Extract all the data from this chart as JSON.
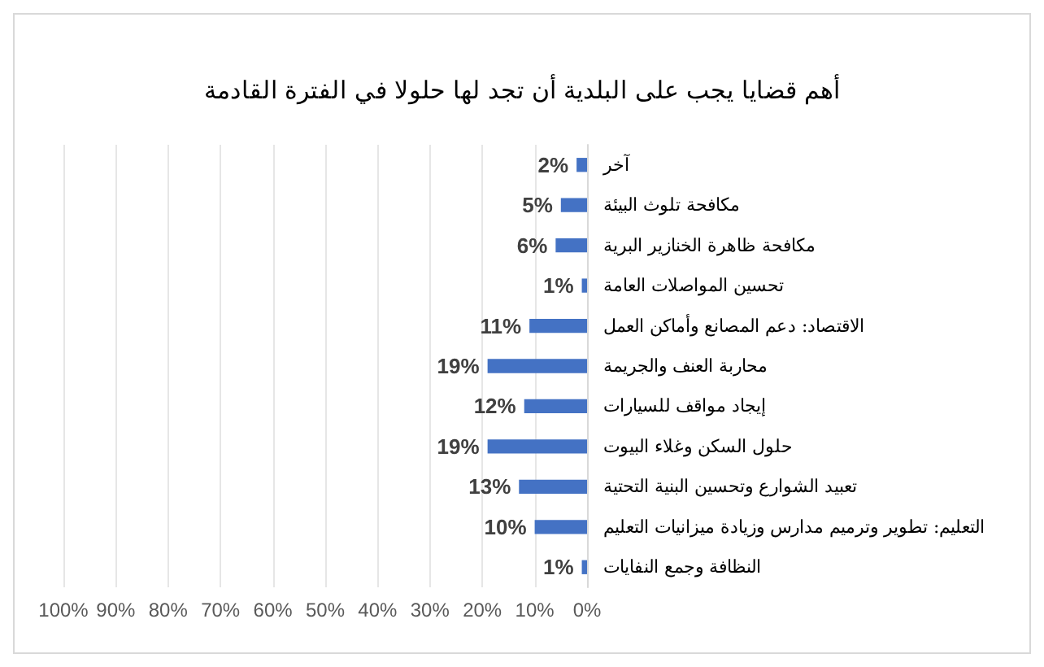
{
  "chart_data": {
    "type": "bar",
    "orientation": "horizontal",
    "title": "أهم قضايا يجب على البلدية أن تجد لها حلولا في الفترة القادمة",
    "categories": [
      "آخر",
      "مكافحة تلوث البيئة",
      "مكافحة ظاهرة الخنازير البرية",
      "تحسين المواصلات العامة",
      "الاقتصاد: دعم المصانع وأماكن العمل",
      "محاربة العنف والجريمة",
      "إيجاد مواقف للسيارات",
      "حلول السكن وغلاء البيوت",
      "تعبيد الشوارع وتحسين البنية التحتية",
      "التعليم: تطوير وترميم مدارس وزيادة ميزانيات التعليم",
      "النظافة وجمع النفايات"
    ],
    "values": [
      2,
      5,
      6,
      1,
      11,
      19,
      12,
      19,
      13,
      10,
      1
    ],
    "value_labels": [
      "2%",
      "5%",
      "6%",
      "1%",
      "11%",
      "19%",
      "12%",
      "19%",
      "13%",
      "10%",
      "1%"
    ],
    "color": "#4472c4",
    "xlim": [
      100,
      0
    ],
    "xticks": [
      {
        "value": 100,
        "label": "100%"
      },
      {
        "value": 90,
        "label": "90%"
      },
      {
        "value": 80,
        "label": "80%"
      },
      {
        "value": 70,
        "label": "70%"
      },
      {
        "value": 60,
        "label": "60%"
      },
      {
        "value": 50,
        "label": "50%"
      },
      {
        "value": 40,
        "label": "40%"
      },
      {
        "value": 30,
        "label": "30%"
      },
      {
        "value": 20,
        "label": "20%"
      },
      {
        "value": 10,
        "label": "10%"
      },
      {
        "value": 0,
        "label": "0%"
      }
    ],
    "grid": "x"
  }
}
